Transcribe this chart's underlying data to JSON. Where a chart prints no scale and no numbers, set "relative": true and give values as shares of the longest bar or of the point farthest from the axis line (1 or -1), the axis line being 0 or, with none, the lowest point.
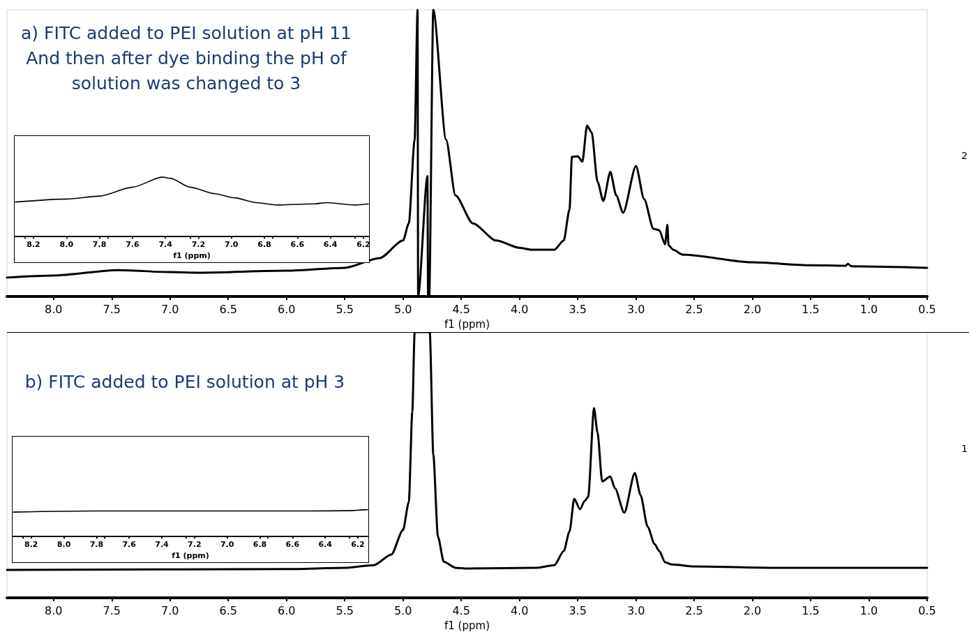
{
  "chart_data": [
    {
      "type": "line",
      "title": "a) FITC added to PEI solution at pH 11\nAnd then after dye binding the pH of\nsolution was changed to 3",
      "xlabel": "f1 (ppm)",
      "relative": true,
      "annotations": [
        "2"
      ],
      "xlim": [
        8.4,
        0.5
      ],
      "xticks": [
        {
          "value": 8,
          "label": "8.0"
        },
        7.5,
        {
          "value": 7,
          "label": "7.0"
        },
        6.5,
        {
          "value": 6,
          "label": "6.0"
        },
        5.5,
        {
          "value": 5,
          "label": "5.0"
        },
        4.5,
        {
          "value": 4,
          "label": "4.0"
        },
        3.5,
        {
          "value": 3,
          "label": "3.0"
        },
        2.5,
        {
          "value": 2,
          "label": "2.0"
        },
        1.5,
        {
          "value": 1,
          "label": "1.0"
        },
        0.5
      ],
      "x": [
        8.4,
        8.0,
        7.45,
        7.0,
        6.75,
        6.0,
        5.5,
        5.2,
        5.0,
        4.95,
        4.9,
        4.875,
        4.87,
        4.79,
        4.785,
        4.775,
        4.74,
        4.63,
        4.55,
        4.4,
        4.2,
        4.0,
        3.9,
        3.7,
        3.62,
        3.57,
        3.55,
        3.5,
        3.46,
        3.42,
        3.38,
        3.33,
        3.28,
        3.22,
        3.17,
        3.11,
        3.0,
        2.93,
        2.85,
        2.8,
        2.75,
        2.73,
        2.72,
        2.68,
        2.6,
        2.0,
        1.5,
        1.2,
        1.18,
        1.15,
        0.5
      ],
      "series": [
        {
          "color": "#000000",
          "values": [
            0.066,
            0.073,
            0.092,
            0.085,
            0.083,
            0.09,
            0.1,
            0.134,
            0.195,
            0.255,
            0.547,
            1.0,
            0,
            0.42,
            0,
            0,
            1.0,
            0.547,
            0.353,
            0.255,
            0.195,
            0.17,
            0.163,
            0.163,
            0.195,
            0.304,
            0.487,
            0.489,
            0.47,
            0.596,
            0.572,
            0.4,
            0.333,
            0.435,
            0.353,
            0.292,
            0.455,
            0.34,
            0.236,
            0.231,
            0.182,
            0.25,
            0.178,
            0.163,
            0.146,
            0.119,
            0.109,
            0.107,
            0.114,
            0.105,
            0.1
          ]
        }
      ]
    },
    {
      "type": "line",
      "xlabel": "f1 (ppm)",
      "relative": true,
      "xlim": [
        8.31,
        6.17
      ],
      "xticks": [
        8.2,
        {
          "value": 8,
          "label": "8.0"
        },
        7.8,
        7.6,
        7.4,
        7.2,
        {
          "value": 7,
          "label": "7.0"
        },
        6.8,
        6.6,
        6.4,
        6.2
      ],
      "x": [
        8.31,
        8.0,
        7.8,
        7.6,
        7.42,
        7.37,
        7.25,
        7.1,
        6.98,
        6.85,
        6.72,
        6.5,
        6.42,
        6.25,
        6.17
      ],
      "series": [
        {
          "color": "#000000",
          "values": [
            0.58,
            0.63,
            0.68,
            0.83,
            1.0,
            0.98,
            0.83,
            0.72,
            0.65,
            0.57,
            0.53,
            0.55,
            0.57,
            0.53,
            0.55
          ]
        }
      ]
    },
    {
      "type": "line",
      "title": "b) FITC added to PEI solution at pH 3",
      "xlabel": "f1 (ppm)",
      "relative": true,
      "annotations": [
        "1"
      ],
      "xlim": [
        8.4,
        0.5
      ],
      "xticks": [
        {
          "value": 8,
          "label": "8.0"
        },
        7.5,
        {
          "value": 7,
          "label": "7.0"
        },
        6.5,
        {
          "value": 6,
          "label": "6.0"
        },
        5.5,
        {
          "value": 5,
          "label": "5.0"
        },
        4.5,
        {
          "value": 4,
          "label": "4.0"
        },
        3.5,
        {
          "value": 3,
          "label": "3.0"
        },
        2.5,
        {
          "value": 2,
          "label": "2.0"
        },
        1.5,
        {
          "value": 1,
          "label": "1.0"
        },
        0.5
      ],
      "x": [
        8.4,
        6.0,
        5.5,
        5.25,
        5.1,
        5.0,
        4.95,
        4.92,
        4.9,
        4.77,
        4.74,
        4.7,
        4.65,
        4.55,
        4.45,
        3.85,
        3.7,
        3.62,
        3.57,
        3.53,
        3.48,
        3.44,
        3.41,
        3.36,
        3.33,
        3.29,
        3.22,
        3.18,
        3.1,
        3.01,
        2.96,
        2.9,
        2.84,
        2.8,
        2.75,
        2.7,
        2.5,
        1.8,
        0.5
      ],
      "series": [
        {
          "color": "#000000",
          "values": [
            0.105,
            0.108,
            0.113,
            0.123,
            0.163,
            0.255,
            0.36,
            0.7,
            1.0,
            1.0,
            0.54,
            0.23,
            0.136,
            0.113,
            0.11,
            0.113,
            0.123,
            0.176,
            0.25,
            0.373,
            0.333,
            0.365,
            0.38,
            0.714,
            0.622,
            0.438,
            0.457,
            0.412,
            0.32,
            0.47,
            0.386,
            0.268,
            0.202,
            0.176,
            0.134,
            0.126,
            0.118,
            0.113,
            0.113
          ]
        }
      ]
    },
    {
      "type": "line",
      "xlabel": "f1 (ppm)",
      "relative": true,
      "xlim": [
        8.31,
        6.14
      ],
      "xticks": [
        8.2,
        {
          "value": 8,
          "label": "8.0"
        },
        7.8,
        7.6,
        7.4,
        7.2,
        {
          "value": 7,
          "label": "7.0"
        },
        6.8,
        6.6,
        6.4,
        6.2
      ],
      "x": [
        8.31,
        7.8,
        6.5,
        6.28,
        6.14
      ],
      "series": [
        {
          "color": "#000000",
          "values": [
            0.91,
            0.95,
            0.95,
            0.96,
            1.0
          ]
        }
      ]
    }
  ]
}
